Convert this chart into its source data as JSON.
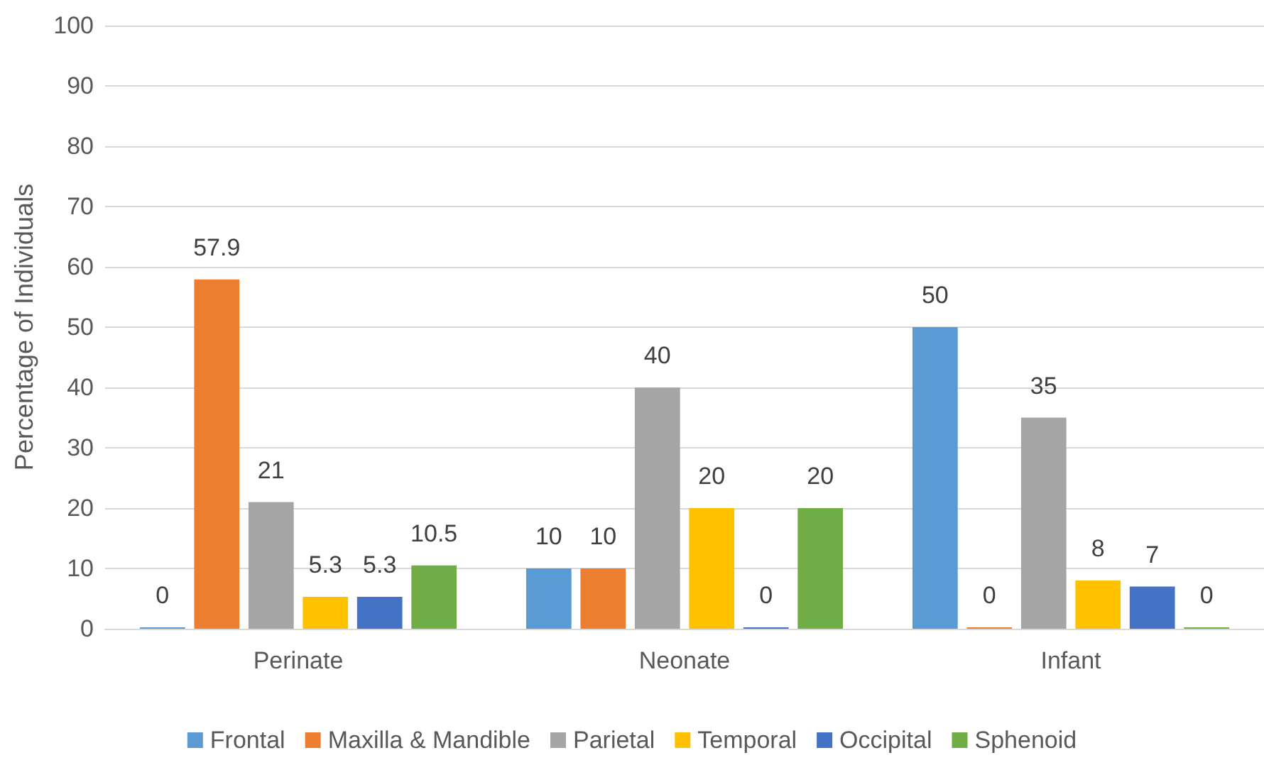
{
  "chart_data": {
    "type": "bar",
    "ylabel": "Percentage of Individuals",
    "categories": [
      "Perinate",
      "Neonate",
      "Infant"
    ],
    "series": [
      {
        "name": "Frontal",
        "color": "#5b9bd5",
        "values": [
          0,
          10,
          50
        ]
      },
      {
        "name": "Maxilla & Mandible",
        "color": "#ed7d31",
        "values": [
          57.9,
          10,
          0
        ]
      },
      {
        "name": "Parietal",
        "color": "#a5a5a5",
        "values": [
          21,
          40,
          35
        ]
      },
      {
        "name": "Temporal",
        "color": "#ffc000",
        "values": [
          5.3,
          20,
          8
        ]
      },
      {
        "name": "Occipital",
        "color": "#4472c4",
        "values": [
          5.3,
          0,
          7
        ]
      },
      {
        "name": "Sphenoid",
        "color": "#70ad47",
        "values": [
          10.5,
          20,
          0
        ]
      }
    ],
    "ylim": [
      0,
      100
    ],
    "yticks": [
      0,
      10,
      20,
      30,
      40,
      50,
      60,
      70,
      80,
      90,
      100
    ],
    "grid": "y",
    "legend": "bottom",
    "data_labels": true
  }
}
